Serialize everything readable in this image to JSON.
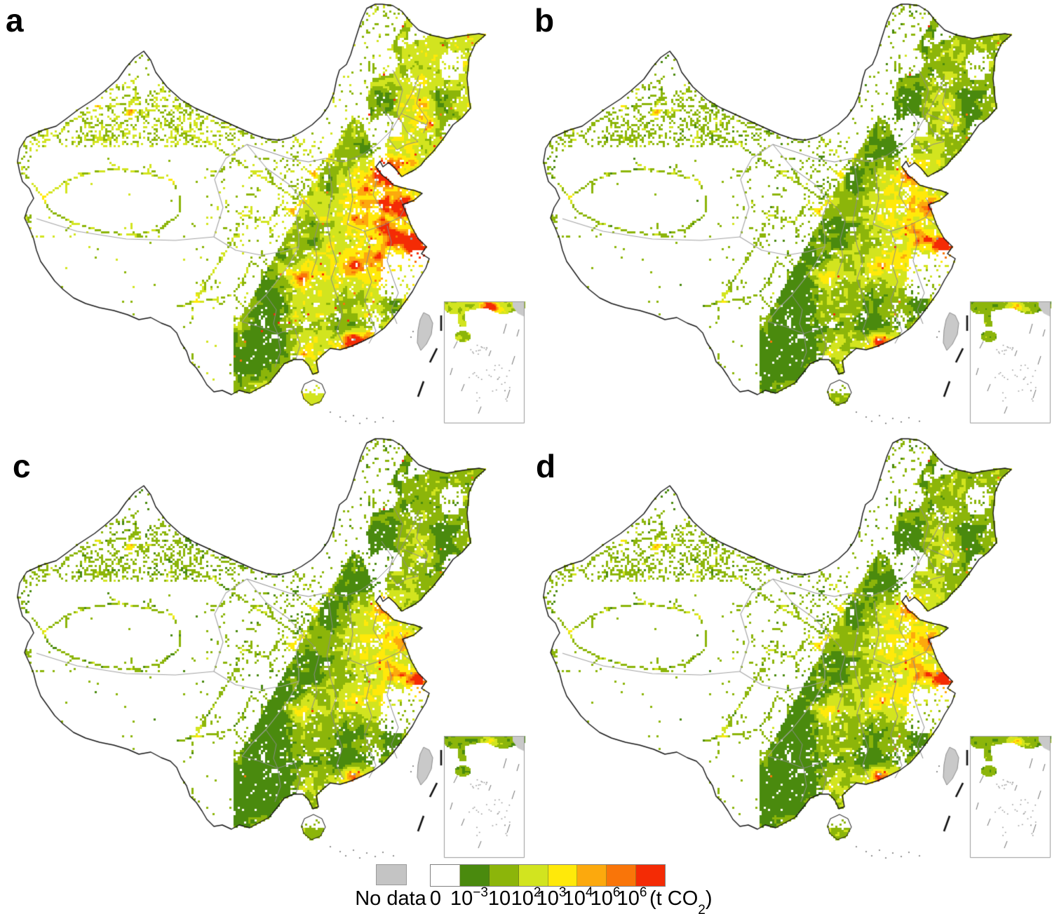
{
  "figure": {
    "panels": [
      {
        "label": "a"
      },
      {
        "label": "b"
      },
      {
        "label": "c"
      },
      {
        "label": "d"
      }
    ]
  },
  "legend": {
    "no_data_label": "No data",
    "ticks": [
      {
        "base": "0"
      },
      {
        "base": "10",
        "exp": "−3"
      },
      {
        "base": "10"
      },
      {
        "base": "10",
        "exp": "2"
      },
      {
        "base": "10",
        "exp": "3"
      },
      {
        "base": "10",
        "exp": "4"
      },
      {
        "base": "10",
        "exp": "5"
      },
      {
        "base": "10",
        "exp": "6"
      }
    ],
    "unit_pre": "(t CO",
    "unit_sub": "2",
    "unit_post": ")",
    "no_data_color": "#c4c4c4",
    "scale_colors": [
      "#ffffff",
      "#4a8a0e",
      "#8cb50a",
      "#d2e41f",
      "#ffe90a",
      "#fca90d",
      "#f97509",
      "#f42b05"
    ]
  },
  "map": {
    "outline_color": "#141414",
    "province_color": "#8a8a8a",
    "west_border_color": "#a3a3a3",
    "no_data_gray": "#9a9a9a",
    "taiwan_fill": "#c9c9c9",
    "taiwan_stroke": "#8a8a8a",
    "inset_border": "#9a9a9a",
    "dash_color": "#111111",
    "panel_params": [
      {
        "value_bias": 0.12,
        "warm_gain": 1.0,
        "speckle": 1.7
      },
      {
        "value_bias": -0.03,
        "warm_gain": 0.6,
        "speckle": 0.55
      },
      {
        "value_bias": -0.07,
        "warm_gain": 0.5,
        "speckle": 0.45
      },
      {
        "value_bias": -0.04,
        "warm_gain": 0.55,
        "speckle": 0.5
      }
    ]
  }
}
